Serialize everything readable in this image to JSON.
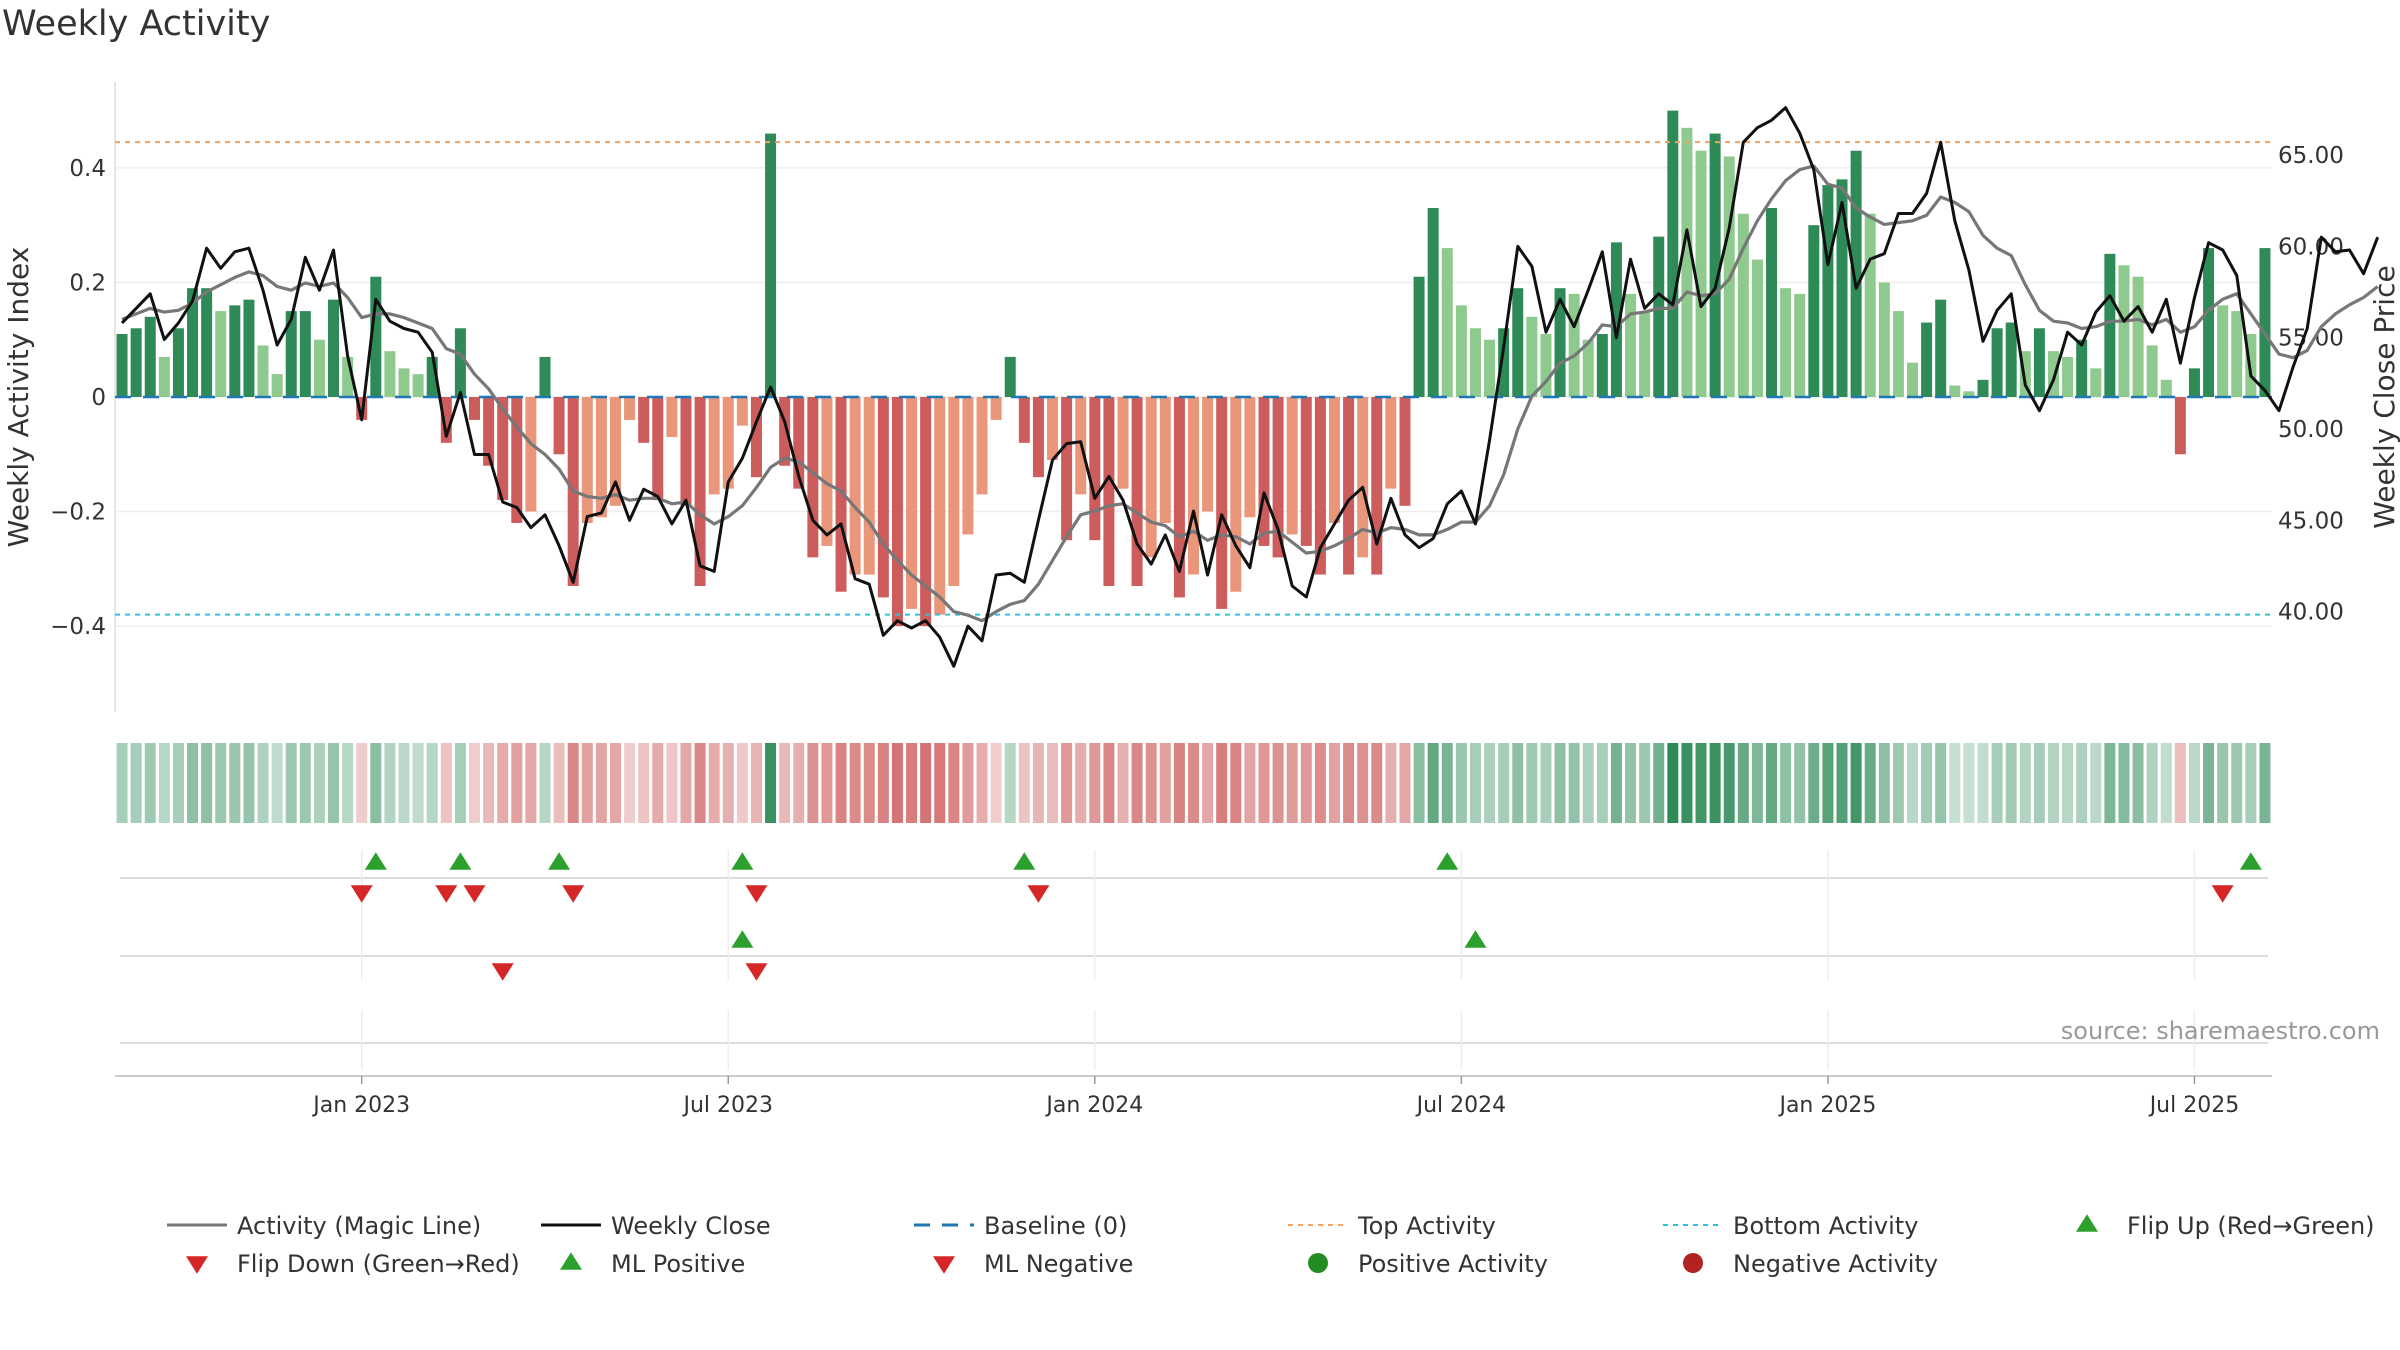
{
  "chart_data": {
    "type": "bar",
    "title": "Weekly Activity",
    "ylabel": "Weekly Activity Index",
    "y2label": "Weekly Close Price",
    "ylim": [
      -0.55,
      0.55
    ],
    "y2lim": [
      34.5,
      69.0
    ],
    "yticks": [
      {
        "v": 0.4,
        "label": "0.4"
      },
      {
        "v": 0.2,
        "label": "0.2"
      },
      {
        "v": 0,
        "label": "0"
      },
      {
        "v": -0.2,
        "label": "−0.2"
      },
      {
        "v": -0.4,
        "label": "−0.4"
      }
    ],
    "y2ticks": [
      {
        "v": 65,
        "label": "65.00"
      },
      {
        "v": 60,
        "label": "60.00"
      },
      {
        "v": 55,
        "label": "55.00"
      },
      {
        "v": 50,
        "label": "50.00"
      },
      {
        "v": 45,
        "label": "45.00"
      },
      {
        "v": 40,
        "label": "40.00"
      }
    ],
    "top_activity": 0.445,
    "bottom_activity": -0.38,
    "xticks": [
      {
        "week": 17,
        "label": "Jan 2023"
      },
      {
        "week": 43,
        "label": "Jul 2023"
      },
      {
        "week": 69,
        "label": "Jan 2024"
      },
      {
        "week": 95,
        "label": "Jul 2024"
      },
      {
        "week": 121,
        "label": "Jan 2025"
      },
      {
        "week": 147,
        "label": "Jul 2025"
      }
    ],
    "activity": [
      0.11,
      0.12,
      0.14,
      0.07,
      0.12,
      0.19,
      0.19,
      0.15,
      0.16,
      0.17,
      0.09,
      0.04,
      0.15,
      0.15,
      0.1,
      0.17,
      0.07,
      -0.04,
      0.21,
      0.08,
      0.05,
      0.04,
      0.07,
      -0.08,
      0.12,
      -0.04,
      -0.12,
      -0.18,
      -0.22,
      -0.2,
      0.07,
      -0.1,
      -0.33,
      -0.22,
      -0.21,
      -0.19,
      -0.04,
      -0.08,
      -0.18,
      -0.07,
      -0.19,
      -0.33,
      -0.17,
      -0.16,
      -0.05,
      -0.14,
      0.46,
      -0.12,
      -0.16,
      -0.28,
      -0.26,
      -0.34,
      -0.31,
      -0.31,
      -0.35,
      -0.4,
      -0.37,
      -0.4,
      -0.38,
      -0.33,
      -0.24,
      -0.17,
      -0.04,
      0.07,
      -0.08,
      -0.14,
      -0.11,
      -0.25,
      -0.17,
      -0.25,
      -0.33,
      -0.16,
      -0.33,
      -0.28,
      -0.22,
      -0.35,
      -0.31,
      -0.2,
      -0.37,
      -0.34,
      -0.21,
      -0.26,
      -0.28,
      -0.24,
      -0.26,
      -0.31,
      -0.22,
      -0.31,
      -0.28,
      -0.31,
      -0.16,
      -0.19,
      0.21,
      0.33,
      0.26,
      0.16,
      0.12,
      0.1,
      0.12,
      0.19,
      0.14,
      0.11,
      0.19,
      0.18,
      0.1,
      0.11,
      0.27,
      0.18,
      0.15,
      0.28,
      0.5,
      0.47,
      0.43,
      0.46,
      0.42,
      0.32,
      0.24,
      0.33,
      0.19,
      0.18,
      0.3,
      0.37,
      0.38,
      0.43,
      0.32,
      0.2,
      0.15,
      0.06,
      0.13,
      0.17,
      0.02,
      0.01,
      0.03,
      0.12,
      0.13,
      0.08,
      0.12,
      0.08,
      0.07,
      0.1,
      0.05,
      0.25,
      0.23,
      0.21,
      0.09,
      0.03,
      -0.1,
      0.05,
      0.26,
      0.16,
      0.15,
      0.11,
      0.26
    ],
    "weekly_close": [
      55.8,
      56.6,
      57.4,
      54.9,
      55.8,
      57.0,
      59.9,
      58.8,
      59.7,
      59.9,
      57.6,
      54.6,
      56.0,
      59.4,
      57.6,
      59.8,
      54.0,
      50.5,
      57.1,
      55.9,
      55.5,
      55.3,
      54.2,
      49.6,
      52.0,
      48.6,
      48.6,
      46.0,
      45.7,
      44.6,
      45.3,
      43.6,
      41.6,
      45.2,
      45.4,
      47.1,
      45.0,
      46.7,
      46.3,
      44.8,
      46.1,
      42.5,
      42.2,
      47.1,
      48.4,
      50.4,
      52.3,
      50.4,
      47.4,
      45.0,
      44.2,
      44.8,
      41.8,
      41.5,
      38.7,
      39.5,
      39.1,
      39.5,
      38.6,
      37.0,
      39.2,
      38.4,
      42.0,
      42.1,
      41.6,
      45.0,
      48.3,
      49.2,
      49.3,
      46.2,
      47.4,
      46.1,
      43.7,
      42.6,
      44.2,
      42.2,
      45.5,
      42.0,
      45.3,
      43.6,
      42.4,
      46.5,
      44.5,
      41.4,
      40.8,
      43.5,
      44.8,
      46.1,
      46.8,
      43.7,
      46.2,
      44.2,
      43.5,
      44.0,
      45.9,
      46.6,
      44.8,
      49.4,
      54.5,
      60.0,
      58.9,
      55.3,
      57.1,
      55.6,
      57.6,
      59.7,
      55.0,
      59.3,
      56.6,
      57.4,
      56.8,
      60.9,
      56.7,
      57.7,
      61.0,
      65.7,
      66.5,
      66.9,
      67.6,
      66.2,
      64.2,
      59.0,
      62.4,
      57.7,
      59.3,
      59.6,
      61.8,
      61.8,
      62.9,
      65.7,
      61.4,
      58.7,
      54.8,
      56.5,
      57.4,
      52.4,
      51.0,
      52.7,
      55.3,
      54.6,
      56.4,
      57.3,
      55.9,
      56.7,
      55.3,
      57.1,
      53.6,
      57.2,
      60.2,
      59.8,
      58.4,
      52.9,
      52.1,
      51.0,
      53.4,
      55.5,
      60.5,
      59.7,
      59.8,
      58.5,
      60.5
    ],
    "magic_line": [
      56.0,
      56.3,
      56.6,
      56.4,
      56.5,
      56.9,
      57.5,
      57.9,
      58.3,
      58.6,
      58.4,
      57.8,
      57.6,
      58.0,
      57.8,
      58.0,
      57.2,
      56.1,
      56.3,
      56.3,
      56.1,
      55.8,
      55.5,
      54.4,
      54.1,
      53.0,
      52.2,
      51.1,
      50.1,
      49.2,
      48.6,
      47.8,
      46.6,
      46.3,
      46.2,
      46.4,
      46.1,
      46.2,
      46.2,
      45.9,
      46.0,
      45.3,
      44.8,
      45.2,
      45.8,
      46.8,
      47.9,
      48.4,
      48.2,
      47.6,
      47.0,
      46.6,
      45.7,
      44.9,
      43.7,
      42.8,
      42.0,
      41.4,
      40.8,
      40.0,
      39.8,
      39.5,
      40.0,
      40.4,
      40.6,
      41.5,
      42.8,
      44.1,
      45.3,
      45.5,
      45.8,
      45.9,
      45.4,
      44.9,
      44.7,
      44.1,
      44.4,
      43.9,
      44.2,
      44.1,
      43.7,
      44.3,
      44.4,
      43.8,
      43.2,
      43.3,
      43.6,
      44.0,
      44.5,
      44.3,
      44.6,
      44.5,
      44.2,
      44.2,
      44.5,
      44.9,
      44.9,
      45.8,
      47.5,
      50.0,
      51.8,
      52.6,
      53.6,
      54.0,
      54.7,
      55.7,
      55.6,
      56.3,
      56.4,
      56.6,
      56.6,
      57.5,
      57.3,
      57.4,
      58.2,
      59.9,
      61.4,
      62.6,
      63.6,
      64.2,
      64.4,
      63.4,
      63.2,
      62.1,
      61.6,
      61.2,
      61.3,
      61.4,
      61.7,
      62.7,
      62.4,
      61.9,
      60.6,
      59.9,
      59.5,
      57.9,
      56.5,
      55.9,
      55.8,
      55.5,
      55.6,
      55.9,
      55.9,
      56.0,
      55.7,
      56.0,
      55.3,
      55.6,
      56.5,
      57.1,
      57.4,
      56.3,
      55.2,
      54.1,
      53.9,
      54.3,
      55.6,
      56.3,
      56.8,
      57.2,
      57.8
    ],
    "flip_up": [
      18,
      24,
      31,
      44,
      64,
      94,
      151
    ],
    "flip_down": [
      17,
      23,
      25,
      32,
      45,
      65,
      149
    ],
    "ml_positive": [
      44,
      96
    ],
    "ml_negative": [
      27,
      45
    ],
    "legend": [
      {
        "key": "activity",
        "label": "Activity (Magic Line)"
      },
      {
        "key": "close",
        "label": "Weekly Close"
      },
      {
        "key": "baseline",
        "label": "Baseline (0)"
      },
      {
        "key": "top",
        "label": "Top Activity"
      },
      {
        "key": "bottom",
        "label": "Bottom Activity"
      },
      {
        "key": "flipup",
        "label": "Flip Up (Red→Green)"
      },
      {
        "key": "flipdown",
        "label": "Flip Down (Green→Red)"
      },
      {
        "key": "mlpos",
        "label": "ML Positive"
      },
      {
        "key": "mlneg",
        "label": "ML Negative"
      },
      {
        "key": "posact",
        "label": "Positive Activity"
      },
      {
        "key": "negact",
        "label": "Negative Activity"
      }
    ],
    "source": "source: sharemaestro.com"
  },
  "colors": {
    "green_dark": "#2e8b57",
    "green_light": "#8ec98e",
    "red_dark": "#cd5c5c",
    "red_light": "#e9967a",
    "close_line": "#111111",
    "magic_line": "#777777",
    "baseline": "#1f77b4",
    "top_line": "#f4a261",
    "bottom_line": "#26c6da",
    "marker_up": "#2ca02c",
    "marker_down": "#d62728",
    "pos_dot": "#228b22",
    "neg_dot": "#b22222"
  }
}
